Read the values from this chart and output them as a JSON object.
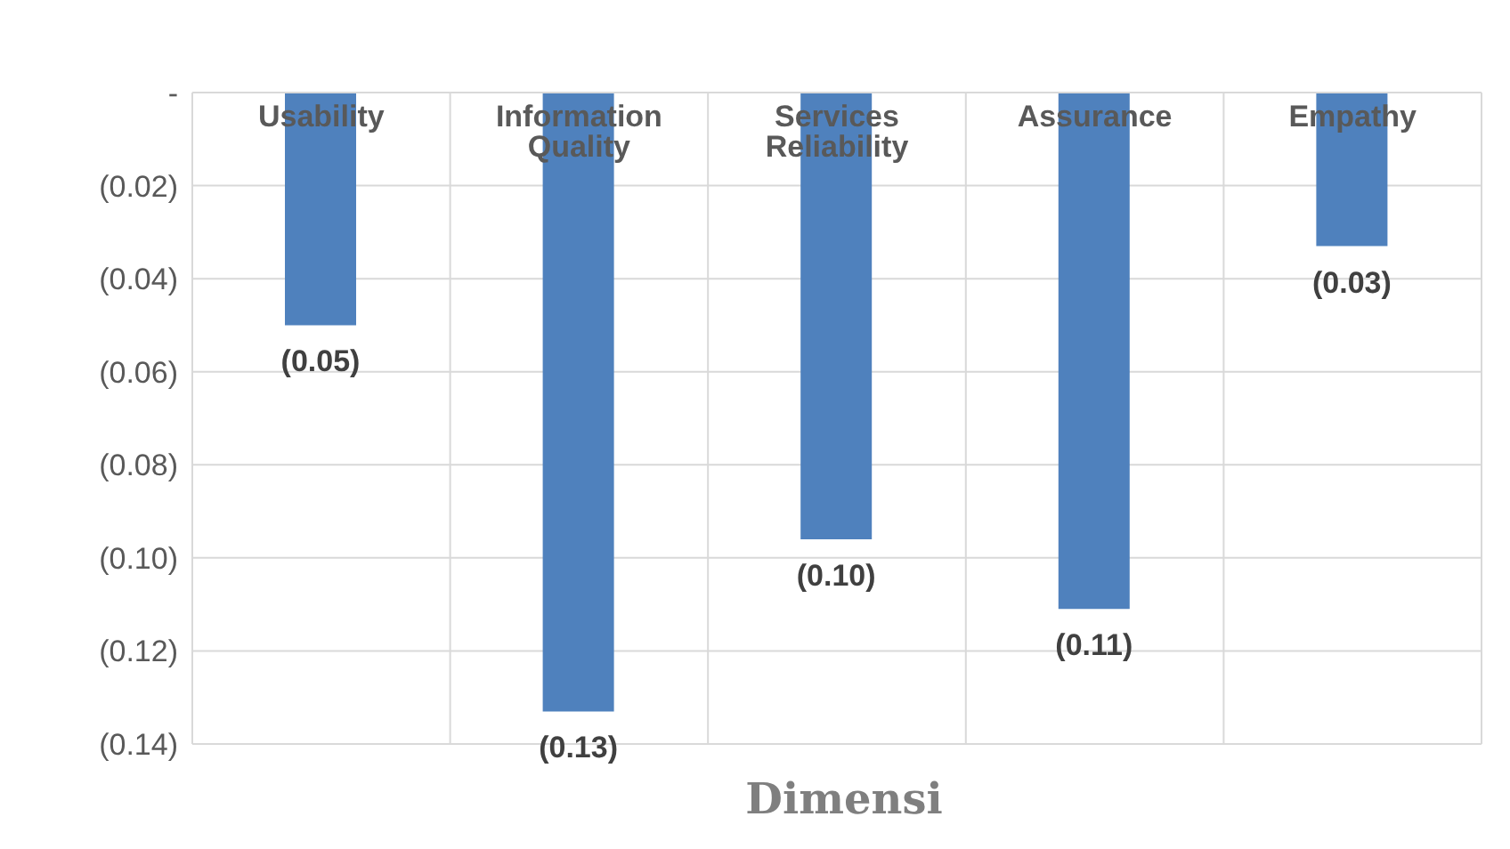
{
  "chart_data": {
    "type": "bar",
    "xlabel": "Dimensi",
    "categories": [
      "Usability",
      "Information Quality",
      "Services Reliability",
      "Assurance",
      "Empathy"
    ],
    "values": [
      -0.05,
      -0.133,
      -0.096,
      -0.111,
      -0.033
    ],
    "value_labels": [
      "(0.05)",
      "(0.13)",
      "(0.10)",
      "(0.11)",
      "(0.03)"
    ],
    "color": "#4f81bd",
    "ylim": [
      -0.14,
      0
    ],
    "yticks": [
      {
        "value": 0,
        "label": "-"
      },
      {
        "value": -0.02,
        "label": "(0.02)"
      },
      {
        "value": -0.04,
        "label": "(0.04)"
      },
      {
        "value": -0.06,
        "label": "(0.06)"
      },
      {
        "value": -0.08,
        "label": "(0.08)"
      },
      {
        "value": -0.1,
        "label": "(0.10)"
      },
      {
        "value": -0.12,
        "label": "(0.12)"
      },
      {
        "value": -0.14,
        "label": "(0.14)"
      }
    ],
    "grid": true
  }
}
